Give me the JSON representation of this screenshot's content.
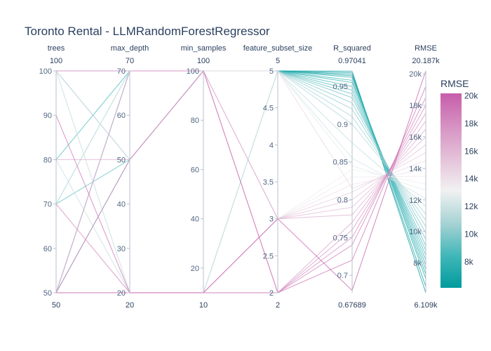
{
  "chart_data": {
    "type": "parallel_coordinates",
    "title": "Toronto Rental - LLMRandomForestRegressor",
    "color_by": "RMSE",
    "colorscale": [
      "#009B9E",
      "#42B7B9",
      "#A7D3D4",
      "#F1F1F1",
      "#E4C1D9",
      "#D691C1",
      "#C75DAB"
    ],
    "colorbar": {
      "title": "RMSE",
      "ticks": [
        "8k",
        "10k",
        "12k",
        "14k",
        "16k",
        "18k",
        "20k"
      ],
      "tick_values": [
        8000,
        10000,
        12000,
        14000,
        16000,
        18000,
        20000
      ],
      "cmin": 6109,
      "cmax": 20187
    },
    "dimensions": [
      {
        "label": "trees",
        "min": 50,
        "max": 100,
        "min_label": "50",
        "max_label": "100",
        "ticks": [
          50,
          60,
          70,
          80,
          90,
          100
        ],
        "tick_labels": [
          "50",
          "60",
          "70",
          "80",
          "90",
          "100"
        ]
      },
      {
        "label": "max_depth",
        "min": 20,
        "max": 70,
        "min_label": "20",
        "max_label": "70",
        "ticks": [
          20,
          30,
          40,
          50,
          60,
          70
        ],
        "tick_labels": [
          "20",
          "30",
          "40",
          "50",
          "60",
          "70"
        ]
      },
      {
        "label": "min_samples",
        "min": 10,
        "max": 100,
        "min_label": "10",
        "max_label": "100",
        "ticks": [
          20,
          40,
          60,
          80,
          100
        ],
        "tick_labels": [
          "20",
          "40",
          "60",
          "80",
          "100"
        ]
      },
      {
        "label": "feature_subset_size",
        "min": 2,
        "max": 5,
        "min_label": "2",
        "max_label": "5",
        "ticks": [
          2,
          2.5,
          3,
          3.5,
          4,
          4.5,
          5
        ],
        "tick_labels": [
          "2",
          "2.5",
          "3",
          "3.5",
          "4",
          "4.5",
          "5"
        ]
      },
      {
        "label": "R_squared",
        "min": 0.67689,
        "max": 0.97041,
        "min_label": "0.67689",
        "max_label": "0.97041",
        "ticks": [
          0.7,
          0.75,
          0.8,
          0.85,
          0.9,
          0.95
        ],
        "tick_labels": [
          "0.7",
          "0.75",
          "0.8",
          "0.85",
          "0.9",
          "0.95"
        ]
      },
      {
        "label": "RMSE",
        "min": 6109,
        "max": 20187,
        "min_label": "6.109k",
        "max_label": "20.187k",
        "ticks": [
          8000,
          10000,
          12000,
          14000,
          16000,
          18000,
          20000
        ],
        "tick_labels": [
          "8k",
          "10k",
          "12k",
          "14k",
          "16k",
          "18k",
          "20k"
        ]
      }
    ],
    "records": [
      [
        50,
        70,
        100,
        5,
        0.97,
        6109
      ],
      [
        50,
        70,
        100,
        5,
        0.968,
        6500
      ],
      [
        100,
        70,
        100,
        5,
        0.966,
        7000
      ],
      [
        50,
        50,
        100,
        5,
        0.964,
        7300
      ],
      [
        70,
        70,
        100,
        5,
        0.962,
        7600
      ],
      [
        100,
        50,
        100,
        5,
        0.958,
        7900
      ],
      [
        50,
        70,
        100,
        5,
        0.955,
        8200
      ],
      [
        80,
        70,
        100,
        5,
        0.95,
        8500
      ],
      [
        50,
        20,
        10,
        5,
        0.945,
        8800
      ],
      [
        70,
        50,
        100,
        5,
        0.94,
        9100
      ],
      [
        100,
        70,
        100,
        5,
        0.935,
        9500
      ],
      [
        50,
        20,
        10,
        5,
        0.928,
        9900
      ],
      [
        70,
        70,
        100,
        5,
        0.92,
        10300
      ],
      [
        100,
        20,
        10,
        5,
        0.91,
        10700
      ],
      [
        50,
        50,
        100,
        5,
        0.9,
        11100
      ],
      [
        80,
        20,
        10,
        5,
        0.875,
        11600
      ],
      [
        50,
        70,
        100,
        5,
        0.855,
        12100
      ],
      [
        100,
        20,
        10,
        5,
        0.845,
        12600
      ],
      [
        70,
        70,
        100,
        3,
        0.84,
        13000
      ],
      [
        50,
        20,
        10,
        3,
        0.83,
        13500
      ],
      [
        100,
        50,
        100,
        3,
        0.82,
        14000
      ],
      [
        50,
        70,
        100,
        5,
        0.815,
        14500
      ],
      [
        70,
        20,
        10,
        3,
        0.81,
        15000
      ],
      [
        100,
        70,
        100,
        3,
        0.8,
        15500
      ],
      [
        50,
        20,
        10,
        3,
        0.79,
        16000
      ],
      [
        80,
        50,
        100,
        3,
        0.78,
        16500
      ],
      [
        50,
        70,
        100,
        2,
        0.77,
        17000
      ],
      [
        70,
        20,
        10,
        2,
        0.76,
        17500
      ],
      [
        100,
        70,
        100,
        2,
        0.75,
        18000
      ],
      [
        50,
        50,
        100,
        2,
        0.74,
        18500
      ],
      [
        90,
        20,
        10,
        2,
        0.72,
        19200
      ],
      [
        50,
        20,
        10,
        3,
        0.68,
        20187
      ]
    ]
  }
}
